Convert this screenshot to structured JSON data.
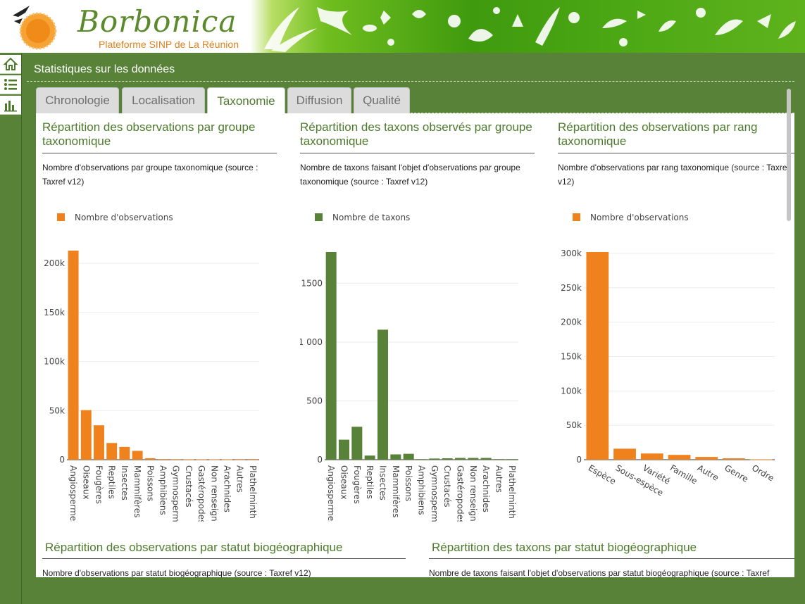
{
  "header": {
    "brand": "Borbonica",
    "subtitle": "Plateforme SINP de La Réunion"
  },
  "nav": [
    {
      "icon": "home-icon"
    },
    {
      "icon": "list-icon"
    },
    {
      "icon": "bar-chart-icon"
    }
  ],
  "page": {
    "title": "Statistiques sur les données"
  },
  "tabs": [
    {
      "label": "Chronologie"
    },
    {
      "label": "Localisation"
    },
    {
      "label": "Taxonomie",
      "active": true
    },
    {
      "label": "Diffusion"
    },
    {
      "label": "Qualité"
    }
  ],
  "panels": [
    {
      "title": "Répartition des observations par groupe taxonomique",
      "desc": "Nombre d'observations par groupe taxonomique (source : Taxref v12)"
    },
    {
      "title": "Répartition des taxons observés par groupe taxonomique",
      "desc": "Nombre de taxons faisant l'objet d'observations par groupe taxonomique (source : Taxref v12)"
    },
    {
      "title": "Répartition des observations par rang taxonomique",
      "desc": "Nombre d'observations par rang taxonomique (source : Taxref v12)"
    },
    {
      "title": "Répartition des observations par statut biogéographique",
      "desc": "Nombre d'observations par statut biogéographique (source : Taxref v12)"
    },
    {
      "title": "Répartition des taxons par statut biogéographique",
      "desc": "Nombre de taxons faisant l'objet d'observations par statut biogéographique (source : Taxref"
    }
  ],
  "colors": {
    "green": "#578238",
    "orange": "#f0821e",
    "title_green": "#4d7a2c"
  },
  "chart_data": [
    {
      "type": "bar",
      "legend": "Nombre d'observations",
      "color": "#f0821e",
      "categories": [
        "Angiospermes",
        "Oiseaux",
        "Fougères",
        "Reptiles",
        "Insectes",
        "Mammifères",
        "Poissons",
        "Amphibiens",
        "Gymnospermes",
        "Crustacés",
        "Gastéropodes",
        "Non renseigné",
        "Arachnides",
        "Autres",
        "Plathelminthes"
      ],
      "values": [
        213000,
        50500,
        35000,
        17000,
        13000,
        9000,
        1500,
        600,
        500,
        400,
        400,
        300,
        300,
        100,
        50
      ],
      "yticks": [
        0,
        50000,
        100000,
        150000,
        200000
      ],
      "ytick_labels": [
        "0",
        "50k",
        "100k",
        "150k",
        "200k"
      ],
      "ylim": [
        0,
        213000
      ],
      "grid": true,
      "legend_position": "top-left"
    },
    {
      "type": "bar",
      "legend": "Nombre de taxons",
      "color": "#578238",
      "categories": [
        "Angiospermes",
        "Oiseaux",
        "Fougères",
        "Reptiles",
        "Insectes",
        "Mammifères",
        "Poissons",
        "Amphibiens",
        "Gymnospermes",
        "Crustacés",
        "Gastéropodes",
        "Non renseigné",
        "Arachnides",
        "Autres",
        "Plathelminthes"
      ],
      "values": [
        1765,
        170,
        280,
        35,
        1105,
        45,
        50,
        5,
        10,
        12,
        15,
        15,
        15,
        5,
        5
      ],
      "yticks": [
        0,
        500,
        1000,
        1500
      ],
      "ytick_labels": [
        "0",
        "500",
        "1 000",
        "1500"
      ],
      "ylim": [
        0,
        1765
      ],
      "grid": true,
      "legend_position": "top-left"
    },
    {
      "type": "bar",
      "legend": "Nombre d'observations",
      "color": "#f0821e",
      "categories": [
        "Espèce",
        "Sous-espèce",
        "Variété",
        "Famille",
        "Autre",
        "Genre",
        "Ordre"
      ],
      "values": [
        302000,
        16000,
        9000,
        7000,
        4000,
        2000,
        500
      ],
      "yticks": [
        0,
        50000,
        100000,
        150000,
        200000,
        250000,
        300000
      ],
      "ytick_labels": [
        "0",
        "50k",
        "100k",
        "150k",
        "200k",
        "250k",
        "300k"
      ],
      "ylim": [
        0,
        302000
      ],
      "grid": true,
      "legend_position": "top-left"
    }
  ]
}
